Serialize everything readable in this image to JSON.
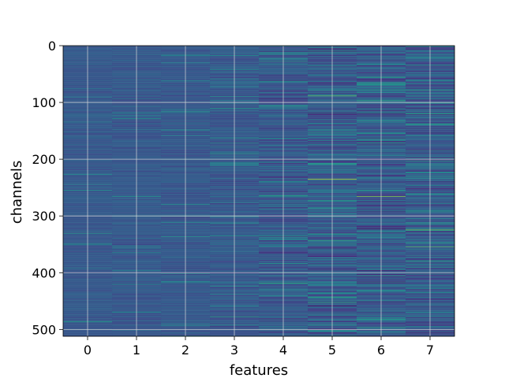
{
  "chart_data": {
    "type": "heatmap",
    "title": "",
    "xlabel": "features",
    "ylabel": "channels",
    "x_ticks": [
      "0",
      "1",
      "2",
      "3",
      "4",
      "5",
      "6",
      "7"
    ],
    "y_ticks": [
      "0",
      "100",
      "200",
      "300",
      "400",
      "500"
    ],
    "x_range": [
      -0.5,
      7.5
    ],
    "y_range": [
      0,
      512
    ],
    "n_features": 8,
    "n_channels": 512,
    "y_inverted": true,
    "grid": true,
    "colormap": "viridis",
    "feature_spread": [
      0.05,
      0.06,
      0.06,
      0.09,
      0.13,
      0.16,
      0.16,
      0.16
    ],
    "notable_cells": [
      {
        "feature": 5,
        "channel": 235,
        "level": 0.92
      },
      {
        "feature": 5,
        "channel": 88,
        "level": 0.75
      },
      {
        "feature": 5,
        "channel": 452,
        "level": 0.62
      },
      {
        "feature": 6,
        "channel": 265,
        "level": 0.82
      },
      {
        "feature": 6,
        "channel": 55,
        "level": 0.6
      },
      {
        "feature": 7,
        "channel": 324,
        "level": 0.78
      },
      {
        "feature": 7,
        "channel": 138,
        "level": 0.6
      },
      {
        "feature": 4,
        "channel": 264,
        "level": 0.6
      },
      {
        "feature": 3,
        "channel": 110,
        "level": 0.55
      }
    ]
  }
}
